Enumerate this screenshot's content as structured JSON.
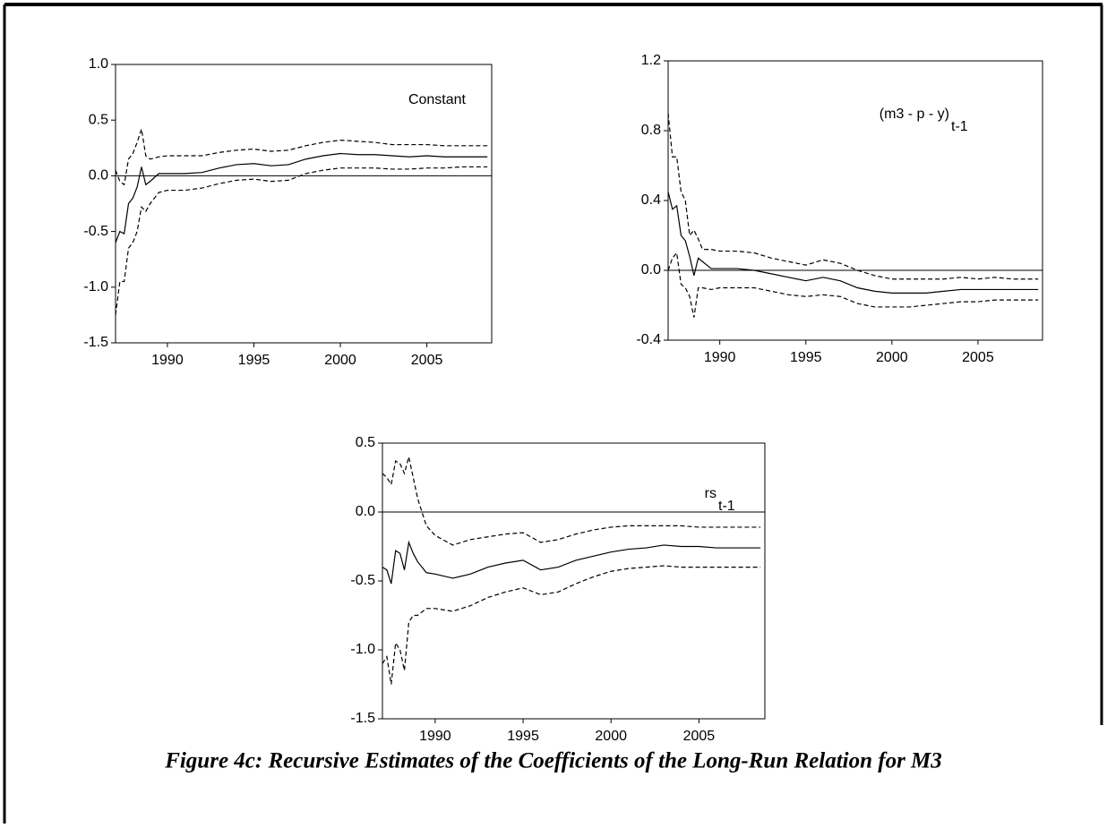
{
  "caption": "Figure 4c:   Recursive Estimates of the Coefficients of the Long-Run Relation for M3",
  "chart_data": [
    {
      "type": "line",
      "annotation": "Constant",
      "x": [
        1987,
        1987.25,
        1987.5,
        1987.75,
        1988,
        1988.25,
        1988.5,
        1988.75,
        1989,
        1989.5,
        1990,
        1991,
        1992,
        1993,
        1994,
        1995,
        1996,
        1997,
        1998,
        1999,
        2000,
        2001,
        2002,
        2003,
        2004,
        2005,
        2006,
        2007,
        2008,
        2008.5
      ],
      "xlim": [
        1987,
        2008.75
      ],
      "xticks": [
        1990,
        1995,
        2000,
        2005
      ],
      "ylim": [
        -1.5,
        1.0
      ],
      "yticks": [
        {
          "value": 1.0,
          "label": "1.0"
        },
        0.5,
        {
          "value": 0,
          "label": "0.0"
        },
        -0.5,
        {
          "value": -1.0,
          "label": "-1.0"
        },
        -1.5
      ],
      "hline": 0,
      "series": [
        {
          "color": "#000000",
          "dash": false,
          "values": [
            -0.6,
            -0.5,
            -0.52,
            -0.25,
            -0.2,
            -0.1,
            0.08,
            -0.08,
            -0.05,
            0.02,
            0.02,
            0.02,
            0.03,
            0.07,
            0.1,
            0.11,
            0.09,
            0.1,
            0.15,
            0.18,
            0.2,
            0.19,
            0.19,
            0.18,
            0.17,
            0.18,
            0.17,
            0.17,
            0.17,
            0.17
          ]
        },
        {
          "color": "#000000",
          "dash": true,
          "values": [
            0.05,
            -0.05,
            -0.08,
            0.15,
            0.2,
            0.3,
            0.42,
            0.18,
            0.15,
            0.17,
            0.18,
            0.18,
            0.18,
            0.21,
            0.23,
            0.24,
            0.22,
            0.23,
            0.27,
            0.3,
            0.32,
            0.31,
            0.3,
            0.28,
            0.28,
            0.28,
            0.27,
            0.27,
            0.27,
            0.27
          ]
        },
        {
          "color": "#000000",
          "dash": true,
          "values": [
            -1.25,
            -0.95,
            -0.95,
            -0.65,
            -0.6,
            -0.5,
            -0.28,
            -0.32,
            -0.25,
            -0.15,
            -0.13,
            -0.13,
            -0.11,
            -0.07,
            -0.04,
            -0.03,
            -0.05,
            -0.04,
            0.02,
            0.05,
            0.07,
            0.07,
            0.07,
            0.06,
            0.06,
            0.07,
            0.07,
            0.08,
            0.08,
            0.08
          ]
        }
      ]
    },
    {
      "type": "line",
      "annotation": "(m3 - p - y)",
      "annotation_sub": "t-1",
      "x": [
        1987,
        1987.25,
        1987.5,
        1987.75,
        1988,
        1988.25,
        1988.5,
        1988.75,
        1989,
        1989.5,
        1990,
        1991,
        1992,
        1993,
        1994,
        1995,
        1996,
        1997,
        1998,
        1999,
        2000,
        2001,
        2002,
        2003,
        2004,
        2005,
        2006,
        2007,
        2008,
        2008.5
      ],
      "xlim": [
        1987,
        2008.75
      ],
      "xticks": [
        1990,
        1995,
        2000,
        2005
      ],
      "ylim": [
        -0.4,
        1.2
      ],
      "yticks": [
        1.2,
        0.8,
        0.4,
        {
          "value": 0,
          "label": "0.0"
        },
        -0.4
      ],
      "hline": 0,
      "series": [
        {
          "color": "#000000",
          "dash": false,
          "values": [
            0.45,
            0.35,
            0.37,
            0.2,
            0.17,
            0.08,
            -0.03,
            0.07,
            0.05,
            0.01,
            0.01,
            0.01,
            0.0,
            -0.02,
            -0.04,
            -0.06,
            -0.04,
            -0.06,
            -0.1,
            -0.12,
            -0.13,
            -0.13,
            -0.13,
            -0.12,
            -0.11,
            -0.11,
            -0.11,
            -0.11,
            -0.11,
            -0.11
          ]
        },
        {
          "color": "#000000",
          "dash": true,
          "values": [
            0.9,
            0.65,
            0.65,
            0.45,
            0.4,
            0.2,
            0.23,
            0.18,
            0.12,
            0.12,
            0.11,
            0.11,
            0.1,
            0.07,
            0.05,
            0.03,
            0.06,
            0.04,
            0.0,
            -0.03,
            -0.05,
            -0.05,
            -0.05,
            -0.05,
            -0.04,
            -0.05,
            -0.04,
            -0.05,
            -0.05,
            -0.05
          ]
        },
        {
          "color": "#000000",
          "dash": true,
          "values": [
            0.0,
            0.07,
            0.1,
            -0.08,
            -0.1,
            -0.15,
            -0.27,
            -0.1,
            -0.1,
            -0.11,
            -0.1,
            -0.1,
            -0.1,
            -0.12,
            -0.14,
            -0.15,
            -0.14,
            -0.15,
            -0.19,
            -0.21,
            -0.21,
            -0.21,
            -0.2,
            -0.19,
            -0.18,
            -0.18,
            -0.17,
            -0.17,
            -0.17,
            -0.17
          ]
        }
      ]
    },
    {
      "type": "line",
      "annotation": "rs",
      "annotation_sub": "t-1",
      "x": [
        1987,
        1987.25,
        1987.5,
        1987.75,
        1988,
        1988.25,
        1988.5,
        1988.75,
        1989,
        1989.5,
        1990,
        1991,
        1992,
        1993,
        1994,
        1995,
        1996,
        1997,
        1998,
        1999,
        2000,
        2001,
        2002,
        2003,
        2004,
        2005,
        2006,
        2007,
        2008,
        2008.5
      ],
      "xlim": [
        1987,
        2008.75
      ],
      "xticks": [
        1990,
        1995,
        2000,
        2005
      ],
      "ylim": [
        -1.5,
        0.5
      ],
      "yticks": [
        0.5,
        {
          "value": 0,
          "label": "0.0"
        },
        -0.5,
        {
          "value": -1.0,
          "label": "-1.0"
        },
        -1.5
      ],
      "hline": 0,
      "series": [
        {
          "color": "#000000",
          "dash": false,
          "values": [
            -0.4,
            -0.42,
            -0.52,
            -0.28,
            -0.3,
            -0.42,
            -0.22,
            -0.3,
            -0.36,
            -0.44,
            -0.45,
            -0.48,
            -0.45,
            -0.4,
            -0.37,
            -0.35,
            -0.42,
            -0.4,
            -0.35,
            -0.32,
            -0.29,
            -0.27,
            -0.26,
            -0.24,
            -0.25,
            -0.25,
            -0.26,
            -0.26,
            -0.26,
            -0.26
          ]
        },
        {
          "color": "#000000",
          "dash": true,
          "values": [
            0.28,
            0.25,
            0.2,
            0.37,
            0.35,
            0.28,
            0.4,
            0.25,
            0.1,
            -0.1,
            -0.17,
            -0.24,
            -0.2,
            -0.18,
            -0.16,
            -0.15,
            -0.22,
            -0.2,
            -0.16,
            -0.13,
            -0.11,
            -0.1,
            -0.1,
            -0.1,
            -0.1,
            -0.11,
            -0.11,
            -0.11,
            -0.11,
            -0.11
          ]
        },
        {
          "color": "#000000",
          "dash": true,
          "values": [
            -1.1,
            -1.05,
            -1.25,
            -0.95,
            -1.0,
            -1.15,
            -0.8,
            -0.75,
            -0.75,
            -0.7,
            -0.7,
            -0.72,
            -0.68,
            -0.62,
            -0.58,
            -0.55,
            -0.6,
            -0.58,
            -0.52,
            -0.47,
            -0.43,
            -0.41,
            -0.4,
            -0.39,
            -0.4,
            -0.4,
            -0.4,
            -0.4,
            -0.4,
            -0.4
          ]
        }
      ]
    }
  ]
}
